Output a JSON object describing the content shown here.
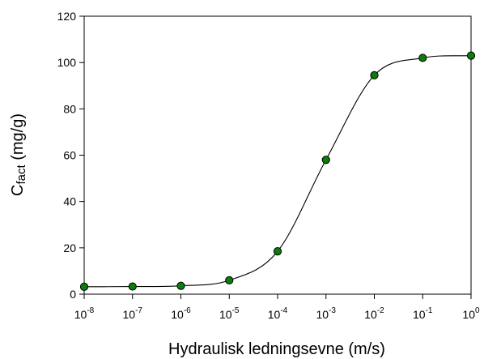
{
  "chart_data": {
    "type": "scatter",
    "xlabel": "Hydraulisk ledningsevne (m/s)",
    "ylabel": "C",
    "ylabel_subscript": "fact",
    "ylabel_unit": " (mg/g)",
    "xscale": "log",
    "xlim": [
      1e-08,
      1
    ],
    "ylim": [
      0,
      120
    ],
    "x_ticks": [
      {
        "base": "10",
        "exp": "-8"
      },
      {
        "base": "10",
        "exp": "-7"
      },
      {
        "base": "10",
        "exp": "-6"
      },
      {
        "base": "10",
        "exp": "-5"
      },
      {
        "base": "10",
        "exp": "-4"
      },
      {
        "base": "10",
        "exp": "-3"
      },
      {
        "base": "10",
        "exp": "-2"
      },
      {
        "base": "10",
        "exp": "-1"
      },
      {
        "base": "10",
        "exp": "0"
      }
    ],
    "y_ticks": [
      "0",
      "20",
      "40",
      "60",
      "80",
      "100",
      "120"
    ],
    "grid": false,
    "legend": "none",
    "series": [
      {
        "marker_color": "#0a7d0a",
        "line_color": "#000000",
        "x": [
          1e-08,
          1e-07,
          1e-06,
          1e-05,
          0.0001,
          0.001,
          0.01,
          0.1,
          1
        ],
        "y": [
          3.2,
          3.3,
          3.6,
          6.0,
          18.5,
          58.0,
          94.5,
          102.0,
          103.0
        ]
      }
    ]
  }
}
